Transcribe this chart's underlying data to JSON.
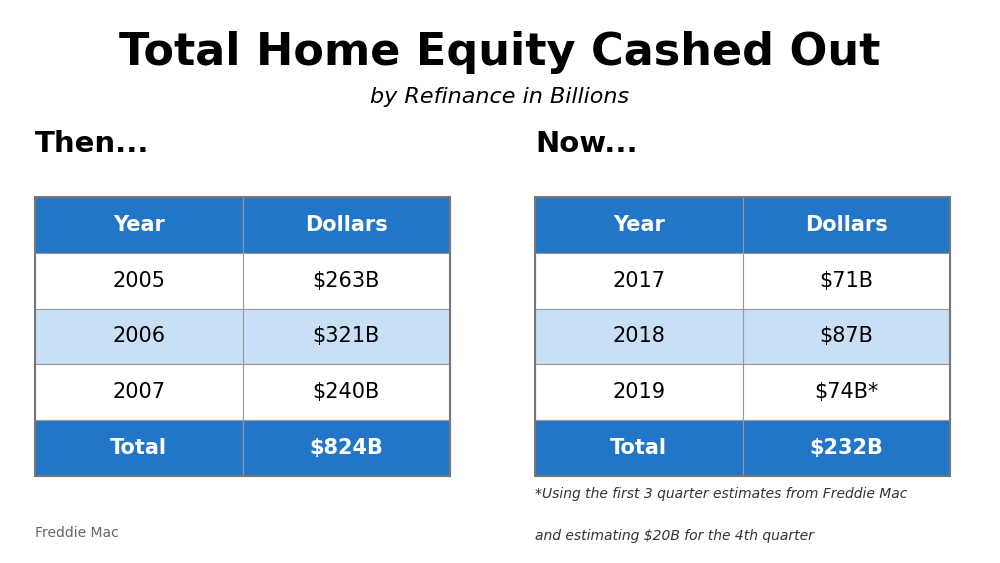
{
  "title": "Total Home Equity Cashed Out",
  "subtitle": "by Refinance in Billions",
  "then_label": "Then...",
  "now_label": "Now...",
  "then_headers": [
    "Year",
    "Dollars"
  ],
  "now_headers": [
    "Year",
    "Dollars"
  ],
  "then_rows": [
    [
      "2005",
      "$263B"
    ],
    [
      "2006",
      "$321B"
    ],
    [
      "2007",
      "$240B"
    ]
  ],
  "now_rows": [
    [
      "2017",
      "$71B"
    ],
    [
      "2018",
      "$87B"
    ],
    [
      "2019",
      "$74B*"
    ]
  ],
  "then_total": [
    "Total",
    "$824B"
  ],
  "now_total": [
    "Total",
    "$232B"
  ],
  "header_bg": "#2176C7",
  "header_fg": "#FFFFFF",
  "total_bg": "#2176C7",
  "total_fg": "#FFFFFF",
  "row_odd_bg": "#FFFFFF",
  "row_even_bg": "#C8DFF5",
  "row_fg": "#000000",
  "footnote_line1": "*Using the first 3 quarter estimates from Freddie Mac",
  "footnote_line2": "and estimating $20B for the 4th quarter",
  "source": "Freddie Mac",
  "bg_color": "#FFFFFF",
  "title_fontsize": 32,
  "subtitle_fontsize": 16,
  "label_fontsize": 21,
  "header_fontsize": 15,
  "cell_fontsize": 15,
  "source_fontsize": 10,
  "footnote_fontsize": 10
}
